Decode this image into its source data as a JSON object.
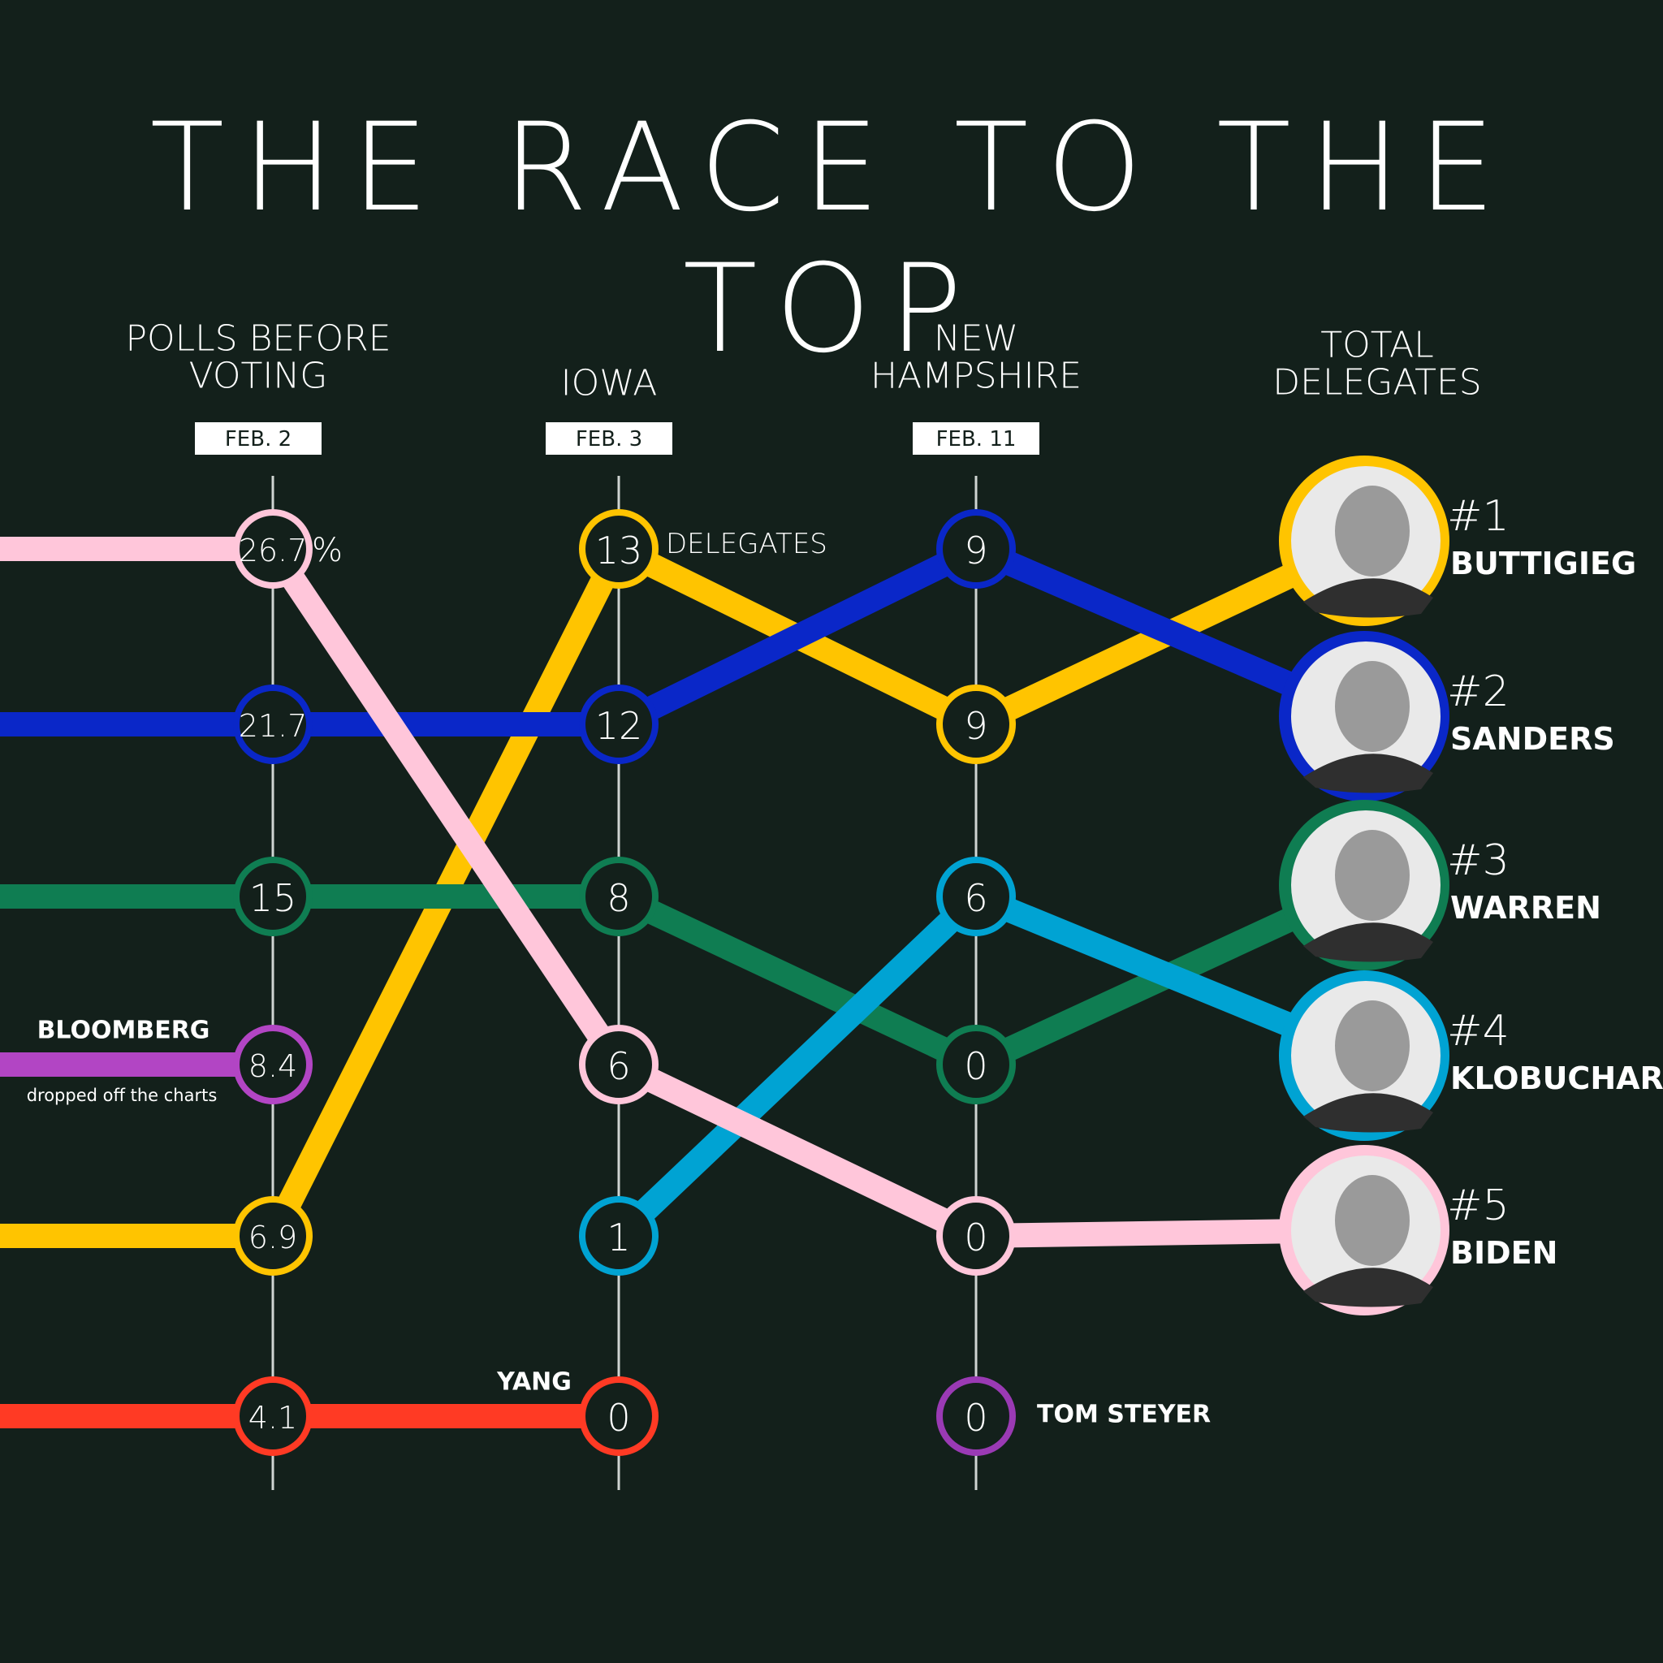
{
  "title": "THE RACE TO THE TOP",
  "colors": {
    "background": "#13201b",
    "buttigieg": "#ffc400",
    "sanders": "#0a27c8",
    "warren": "#0f7d52",
    "klobuchar": "#00a3d3",
    "biden": "#ffc6da",
    "bloomberg": "#b245c4",
    "yang": "#ff3a24",
    "steyer": "#9a3ab4"
  },
  "chart_data": {
    "type": "line",
    "stages": [
      {
        "label_lines": [
          "POLLS BEFORE",
          "VOTING"
        ],
        "date": "FEB. 2"
      },
      {
        "label_lines": [
          "IOWA"
        ],
        "date": "FEB. 3"
      },
      {
        "label_lines": [
          "NEW",
          "HAMPSHIRE"
        ],
        "date": "FEB. 11"
      },
      {
        "label_lines": [
          "TOTAL",
          "DELEGATES"
        ],
        "date": ""
      }
    ],
    "unit_labels": {
      "polls": "%",
      "iowa": "DELEGATES"
    },
    "series": [
      {
        "name": "BUTTIGIEG",
        "rank": "#1",
        "color_key": "buttigieg",
        "values": [
          "6.9",
          "13",
          "9"
        ],
        "slots": [
          4,
          0,
          1
        ],
        "final_slot": 0
      },
      {
        "name": "SANDERS",
        "rank": "#2",
        "color_key": "sanders",
        "values": [
          "21.7",
          "12",
          "9"
        ],
        "slots": [
          1,
          1,
          0
        ],
        "final_slot": 1
      },
      {
        "name": "WARREN",
        "rank": "#3",
        "color_key": "warren",
        "values": [
          "15",
          "8",
          "0"
        ],
        "slots": [
          2,
          2,
          3
        ],
        "final_slot": 2
      },
      {
        "name": "KLOBUCHAR",
        "rank": "#4",
        "color_key": "klobuchar",
        "values": [
          "",
          "1",
          "6"
        ],
        "slots": [
          null,
          4,
          2
        ],
        "final_slot": 3
      },
      {
        "name": "BIDEN",
        "rank": "#5",
        "color_key": "biden",
        "values": [
          "26.7",
          "6",
          "0"
        ],
        "slots": [
          0,
          3,
          4
        ],
        "final_slot": 4
      }
    ],
    "dropped": [
      {
        "name": "BLOOMBERG",
        "note": "dropped off the charts",
        "color_key": "bloomberg",
        "stage": 0,
        "slot": 3,
        "value": "8.4"
      },
      {
        "name": "YANG",
        "color_key": "yang",
        "stage": 0,
        "slot": 5,
        "value": "4.1",
        "end_stage": 1,
        "end_value": "0"
      },
      {
        "name": "TOM STEYER",
        "color_key": "steyer",
        "stage": 2,
        "slot": 5,
        "value": "0"
      }
    ]
  }
}
